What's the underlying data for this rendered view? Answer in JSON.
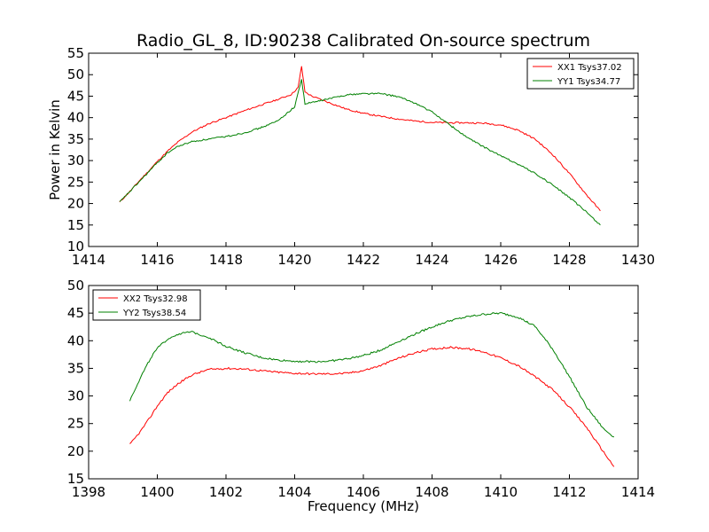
{
  "chart_data": [
    {
      "type": "line",
      "title": "Radio_GL_8, ID:90238 Calibrated On-source spectrum",
      "xlabel": "",
      "ylabel": "Power in Kelvin",
      "xlim": [
        1414,
        1430
      ],
      "ylim": [
        10,
        55
      ],
      "xticks": [
        1414,
        1416,
        1418,
        1420,
        1422,
        1424,
        1426,
        1428,
        1430
      ],
      "yticks": [
        10,
        15,
        20,
        25,
        30,
        35,
        40,
        45,
        50,
        55
      ],
      "grid": false,
      "legend_position": "top-right",
      "series": [
        {
          "name": "XX1 Tsys37.02",
          "color": "#ff0000",
          "x": [
            1414.9,
            1415.2,
            1415.5,
            1415.8,
            1416.0,
            1416.3,
            1416.6,
            1417.0,
            1417.5,
            1418.0,
            1418.5,
            1419.0,
            1419.5,
            1419.9,
            1420.1,
            1420.2,
            1420.3,
            1420.5,
            1421.0,
            1421.5,
            1422.0,
            1422.5,
            1423.0,
            1423.5,
            1424.0,
            1424.5,
            1425.0,
            1425.5,
            1426.0,
            1426.5,
            1427.0,
            1427.5,
            1428.0,
            1428.5,
            1428.9
          ],
          "y": [
            20.3,
            22.8,
            25.5,
            28.0,
            29.8,
            32.2,
            34.3,
            36.6,
            38.6,
            40.0,
            41.5,
            42.9,
            44.2,
            45.4,
            47.0,
            52.0,
            46.0,
            45.0,
            43.5,
            42.0,
            41.0,
            40.3,
            39.7,
            39.2,
            38.9,
            38.8,
            38.8,
            38.7,
            38.3,
            37.1,
            35.0,
            31.5,
            27.0,
            22.0,
            18.3
          ]
        },
        {
          "name": "YY1 Tsys34.77",
          "color": "#008000",
          "x": [
            1414.9,
            1415.2,
            1415.5,
            1415.8,
            1416.0,
            1416.3,
            1416.6,
            1417.0,
            1417.5,
            1418.0,
            1418.5,
            1419.0,
            1419.5,
            1420.0,
            1420.2,
            1420.3,
            1420.5,
            1421.0,
            1421.5,
            1422.0,
            1422.5,
            1423.0,
            1423.5,
            1424.0,
            1424.5,
            1425.0,
            1425.5,
            1426.0,
            1426.5,
            1427.0,
            1427.5,
            1428.0,
            1428.5,
            1428.9
          ],
          "y": [
            20.3,
            22.8,
            25.3,
            27.8,
            29.5,
            31.8,
            33.3,
            34.4,
            35.0,
            35.6,
            36.4,
            37.6,
            39.2,
            42.5,
            49.0,
            43.2,
            43.5,
            44.4,
            45.3,
            45.6,
            45.6,
            44.9,
            43.4,
            41.3,
            38.4,
            35.5,
            33.2,
            31.1,
            29.2,
            27.0,
            24.4,
            21.4,
            18.0,
            15.0
          ]
        }
      ]
    },
    {
      "type": "line",
      "title": "",
      "xlabel": "Frequency (MHz)",
      "ylabel": "",
      "xlim": [
        1398,
        1414
      ],
      "ylim": [
        15,
        50
      ],
      "xticks": [
        1398,
        1400,
        1402,
        1404,
        1406,
        1408,
        1410,
        1412,
        1414
      ],
      "yticks": [
        15,
        20,
        25,
        30,
        35,
        40,
        45,
        50
      ],
      "grid": false,
      "legend_position": "top-left",
      "series": [
        {
          "name": "XX2 Tsys32.98",
          "color": "#ff0000",
          "x": [
            1399.2,
            1399.5,
            1399.8,
            1400.0,
            1400.3,
            1400.6,
            1401.0,
            1401.5,
            1402.0,
            1402.5,
            1403.0,
            1403.5,
            1404.0,
            1404.5,
            1405.0,
            1405.5,
            1406.0,
            1406.5,
            1407.0,
            1407.5,
            1408.0,
            1408.5,
            1409.0,
            1409.5,
            1410.0,
            1410.5,
            1411.0,
            1411.5,
            1412.0,
            1412.5,
            1413.0,
            1413.3
          ],
          "y": [
            21.2,
            23.5,
            26.2,
            28.2,
            30.6,
            32.2,
            33.8,
            34.8,
            35.0,
            34.9,
            34.6,
            34.3,
            34.1,
            34.0,
            34.0,
            34.1,
            34.6,
            35.5,
            36.8,
            37.8,
            38.5,
            38.8,
            38.6,
            38.0,
            36.9,
            35.5,
            33.5,
            31.2,
            28.0,
            24.3,
            19.8,
            17.2
          ]
        },
        {
          "name": "YY2 Tsys38.54",
          "color": "#008000",
          "x": [
            1399.2,
            1399.5,
            1399.8,
            1400.0,
            1400.3,
            1400.6,
            1401.0,
            1401.5,
            1402.0,
            1402.5,
            1403.0,
            1403.5,
            1404.0,
            1404.5,
            1405.0,
            1405.5,
            1406.0,
            1406.5,
            1407.0,
            1407.5,
            1408.0,
            1408.5,
            1409.0,
            1409.5,
            1410.0,
            1410.5,
            1411.0,
            1411.5,
            1412.0,
            1412.5,
            1413.0,
            1413.3
          ],
          "y": [
            29.2,
            33.2,
            36.8,
            38.6,
            40.3,
            41.2,
            41.6,
            40.6,
            39.0,
            37.9,
            37.0,
            36.5,
            36.3,
            36.2,
            36.3,
            36.7,
            37.3,
            38.3,
            39.8,
            41.2,
            42.5,
            43.6,
            44.3,
            44.8,
            45.0,
            44.3,
            42.6,
            38.6,
            33.5,
            28.0,
            24.0,
            22.6
          ]
        }
      ]
    }
  ]
}
